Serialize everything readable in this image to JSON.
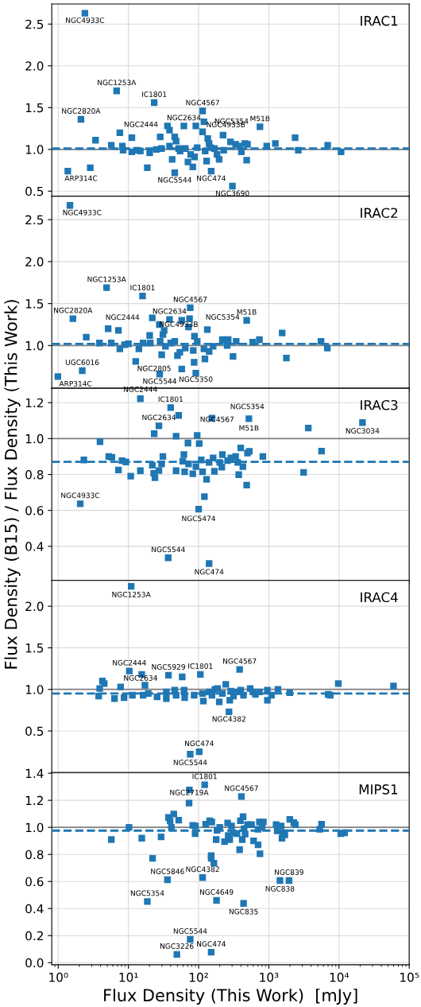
{
  "chart_data": [
    {
      "type": "scatter",
      "title": "IRAC1",
      "color": "#1f77b4",
      "marker": "square",
      "grid": true,
      "legend": false,
      "log": "x",
      "tick_labels": "y",
      "xlim": [
        0.81,
        100000
      ],
      "ylim": [
        0.44,
        2.74
      ],
      "yticks": [
        0.5,
        {
          "value": 1,
          "label": "1.0"
        },
        1.5,
        {
          "value": 2,
          "label": "2.0"
        },
        2.5
      ],
      "x": [
        2.4,
        1.37,
        2.11,
        2.86,
        3.4,
        5.7,
        6.8,
        7.55,
        8.2,
        8.4,
        11.2,
        11.2,
        13.0,
        14.8,
        18.6,
        20.1,
        23.3,
        25,
        28.4,
        29.7,
        36,
        38.5,
        42,
        38.5,
        45.7,
        45.7,
        47.8,
        52,
        54.5,
        61.7,
        64.6,
        70.5,
        77,
        82.6,
        87.3,
        91.3,
        95.5,
        114,
        114,
        119,
        124,
        130,
        135,
        141,
        148,
        151,
        168,
        183,
        196,
        223,
        228,
        284,
        303,
        337,
        382,
        407,
        456,
        484,
        497,
        748,
        935,
        1240,
        2370,
        2630,
        6900,
        10700
      ],
      "values": [
        2.63,
        0.74,
        1.36,
        0.78,
        1.11,
        1.05,
        1.7,
        1.2,
        1.04,
        0.99,
        1.14,
        0.97,
        0.99,
        0.98,
        0.78,
        0.96,
        1.56,
        1.0,
        1.15,
        1.01,
        1.28,
        1.23,
        0.88,
        1.04,
        0.72,
        1.15,
        1.1,
        1.01,
        0.98,
        1.28,
        1.01,
        0.85,
        0.94,
        0.79,
        0.91,
        1.28,
        1.02,
        1.46,
        1.21,
        1.33,
        0.98,
        0.86,
        1.13,
        1.07,
        1.02,
        0.74,
        1.01,
        0.94,
        0.88,
        1.17,
        0.99,
        1.09,
        0.56,
        1.06,
        1.04,
        0.97,
        1.07,
        0.87,
        1.06,
        1.27,
        1.04,
        1.07,
        1.14,
        0.99,
        1.05,
        0.97
      ],
      "ref_lines": [
        {
          "axis": "y",
          "value": 1.0,
          "color": "#808080",
          "line_style": "solid"
        },
        {
          "axis": "y",
          "value": 1.01,
          "color": "#1f77b4",
          "line_style": "dashed"
        }
      ],
      "annotations": [
        {
          "text": "NGC4933C",
          "x": 2.4,
          "y": 2.63
        },
        {
          "text": "NGC1253A",
          "x": 6.8,
          "y": 1.7
        },
        {
          "text": "IC1801",
          "x": 23.3,
          "y": 1.56
        },
        {
          "text": "NGC4567",
          "x": 114,
          "y": 1.46
        },
        {
          "text": "NGC2820A",
          "x": 2.11,
          "y": 1.36
        },
        {
          "text": "NGC2444",
          "x": 36,
          "y": 1.28
        },
        {
          "text": "NGC2634",
          "x": 61.7,
          "y": 1.28
        },
        {
          "text": "NGC5354",
          "x": 119,
          "y": 1.33
        },
        {
          "text": "NGC4933B",
          "x": 114,
          "y": 1.21
        },
        {
          "text": "M51B",
          "x": 748,
          "y": 1.27
        },
        {
          "text": "ARP314C",
          "x": 1.37,
          "y": 0.74
        },
        {
          "text": "NGC5544",
          "x": 45.7,
          "y": 0.72
        },
        {
          "text": "NGC474",
          "x": 151,
          "y": 0.74
        },
        {
          "text": "NGC3690",
          "x": 303,
          "y": 0.56
        }
      ]
    },
    {
      "type": "scatter",
      "title": "IRAC2",
      "color": "#1f77b4",
      "marker": "square",
      "grid": true,
      "legend": false,
      "log": "x",
      "tick_labels": "y",
      "xlim": [
        0.81,
        100000
      ],
      "ylim": [
        0.49,
        2.78
      ],
      "yticks": [
        {
          "value": 1,
          "label": "1.0"
        },
        1.5,
        {
          "value": 2,
          "label": "2.0"
        },
        2.5
      ],
      "x": [
        1.47,
        0.99,
        1.62,
        2.2,
        2.51,
        3.87,
        4.89,
        5.15,
        5.7,
        7.2,
        7.55,
        8.8,
        10,
        12.7,
        14.1,
        15.9,
        16.2,
        20.1,
        20.5,
        21.9,
        27.6,
        28.3,
        27.9,
        29.8,
        31,
        32.3,
        33.7,
        38.5,
        40,
        45.7,
        50,
        54,
        57.5,
        57.5,
        64.6,
        71.9,
        74.3,
        75.9,
        84,
        87.3,
        86.3,
        91.3,
        95.5,
        119,
        123,
        133,
        141,
        161,
        218,
        255,
        264,
        309,
        343,
        590,
        735,
        484,
        1550,
        1780,
        5540,
        6820
      ],
      "values": [
        2.67,
        0.63,
        1.32,
        0.7,
        1.1,
        1.03,
        1.69,
        1.2,
        1.03,
        1.18,
        0.96,
        1.01,
        1.02,
        0.81,
        0.96,
        1.59,
        1.03,
        1.12,
        1.03,
        1.33,
        1.25,
        1.05,
        0.66,
        0.89,
        1.13,
        1.18,
        0.99,
        1.31,
        1.03,
        1.05,
        0.88,
        0.92,
        1.3,
        0.72,
        0.97,
        1.22,
        1.32,
        1.45,
        0.94,
        1.11,
        0.8,
        0.67,
        1.05,
        0.96,
        0.84,
        1.19,
        0.93,
        0.99,
        1.07,
        1.0,
        1.07,
        0.87,
        1.05,
        1.04,
        1.07,
        1.3,
        1.15,
        0.85,
        1.05,
        0.97
      ],
      "ref_lines": [
        {
          "axis": "y",
          "value": 1.0,
          "color": "#808080",
          "line_style": "solid"
        },
        {
          "axis": "y",
          "value": 1.02,
          "color": "#1f77b4",
          "line_style": "dashed"
        }
      ],
      "annotations": [
        {
          "text": "NGC4933C",
          "x": 1.47,
          "y": 2.67
        },
        {
          "text": "NGC1253A",
          "x": 4.89,
          "y": 1.69
        },
        {
          "text": "IC1801",
          "x": 15.9,
          "y": 1.59
        },
        {
          "text": "NGC4567",
          "x": 75.9,
          "y": 1.45
        },
        {
          "text": "NGC2820A",
          "x": 1.62,
          "y": 1.32
        },
        {
          "text": "NGC2444",
          "x": 21.9,
          "y": 1.33
        },
        {
          "text": "NGC2634",
          "x": 38.5,
          "y": 1.31
        },
        {
          "text": "NGC5354",
          "x": 74.3,
          "y": 1.32
        },
        {
          "text": "M51B",
          "x": 484,
          "y": 1.3
        },
        {
          "text": "NGC4933B",
          "x": 71.9,
          "y": 1.22
        },
        {
          "text": "UGC6016",
          "x": 2.2,
          "y": 0.7
        },
        {
          "text": "NGC2805",
          "x": 57.5,
          "y": 0.72
        },
        {
          "text": "NGC5544",
          "x": 27.9,
          "y": 0.66
        },
        {
          "text": "NGC5350",
          "x": 91.3,
          "y": 0.67
        },
        {
          "text": "ARP314C",
          "x": 0.99,
          "y": 0.63
        }
      ]
    },
    {
      "type": "scatter",
      "title": "IRAC3",
      "ylabel": "Flux Density (B15) / Flux Density (This Work)",
      "color": "#1f77b4",
      "marker": "square",
      "grid": true,
      "legend": false,
      "log": "x",
      "tick_labels": "y",
      "xlim": [
        0.81,
        100000
      ],
      "ylim": [
        0.21,
        1.28
      ],
      "yticks": [
        0.4,
        0.6,
        0.8,
        {
          "value": 1,
          "label": "1.0"
        },
        1.2
      ],
      "x": [
        2.06,
        2.32,
        3.94,
        5.25,
        5.82,
        7.22,
        8.09,
        9.2,
        10.8,
        14.8,
        14.8,
        21.9,
        22.9,
        23.3,
        23.9,
        27.2,
        27.2,
        29.7,
        31,
        36.9,
        40,
        47.8,
        47.8,
        52,
        59.4,
        61.7,
        63.3,
        70.5,
        71.9,
        82.6,
        91.6,
        95.5,
        100,
        102,
        109,
        114,
        121,
        130,
        141,
        141,
        155,
        161,
        168,
        200,
        218,
        214,
        259,
        288,
        337,
        361,
        373,
        398,
        427,
        484,
        497,
        520,
        528,
        823,
        3130,
        3650,
        5640,
        21600
      ],
      "values": [
        0.637,
        0.881,
        0.982,
        0.9,
        0.896,
        0.825,
        0.877,
        0.87,
        0.791,
        1.222,
        0.821,
        0.852,
        0.807,
        1.027,
        0.782,
        1.071,
        0.822,
        0.859,
        0.9,
        0.336,
        1.173,
        1.013,
        0.821,
        1.129,
        0.874,
        0.911,
        0.815,
        0.975,
        0.859,
        0.804,
        0.844,
        1.018,
        0.607,
        0.972,
        0.881,
        0.815,
        0.677,
        0.773,
        0.304,
        0.867,
        1.114,
        0.892,
        0.818,
        0.867,
        0.911,
        0.841,
        0.877,
        0.892,
        0.9,
        0.867,
        0.799,
        0.948,
        0.844,
        0.741,
        0.919,
        1.111,
        0.929,
        0.9,
        0.812,
        1.059,
        0.93,
        1.089
      ],
      "ref_lines": [
        {
          "axis": "y",
          "value": 1.0,
          "color": "#808080",
          "line_style": "solid"
        },
        {
          "axis": "y",
          "value": 0.87,
          "color": "#1f77b4",
          "line_style": "dashed"
        }
      ],
      "annotations": [
        {
          "text": "NGC2444",
          "x": 14.8,
          "y": 1.222
        },
        {
          "text": "IC1801",
          "x": 40,
          "y": 1.173
        },
        {
          "text": "NGC5354",
          "x": 155,
          "y": 1.114
        },
        {
          "text": "NGC2634",
          "x": 27.2,
          "y": 1.071
        },
        {
          "text": "NGC4567",
          "x": 95.5,
          "y": 1.018
        },
        {
          "text": "M51B",
          "x": 520,
          "y": 1.111
        },
        {
          "text": "NGC3034",
          "x": 21600,
          "y": 1.089
        },
        {
          "text": "NGC4933C",
          "x": 2.06,
          "y": 0.637
        },
        {
          "text": "NGC5474",
          "x": 100,
          "y": 0.607
        },
        {
          "text": "NGC5544",
          "x": 36.9,
          "y": 0.336
        },
        {
          "text": "NGC474",
          "x": 141,
          "y": 0.304
        }
      ]
    },
    {
      "type": "scatter",
      "title": "IRAC4",
      "color": "#1f77b4",
      "marker": "square",
      "grid": true,
      "legend": false,
      "log": "x",
      "tick_labels": "y",
      "xlim": [
        0.81,
        100000
      ],
      "ylim": [
        0.0,
        2.31
      ],
      "yticks": [
        0.5,
        {
          "value": 1,
          "label": "1.0"
        },
        1.5,
        {
          "value": 2,
          "label": "2.0"
        }
      ],
      "x": [
        10.96,
        3.77,
        3.9,
        4.26,
        4.52,
        6.34,
        7.74,
        8.67,
        10.3,
        11.4,
        15.5,
        16.2,
        17.2,
        19.2,
        25.6,
        34.7,
        34.7,
        37.2,
        45.7,
        47.8,
        58.4,
        62.1,
        63.3,
        86.3,
        106,
        114,
        117,
        141,
        155,
        171,
        186,
        197,
        218,
        244,
        271,
        278,
        288,
        314,
        352,
        384,
        398,
        436,
        542,
        592,
        645,
        735,
        955,
        955,
        1090,
        1350,
        1990,
        7000,
        7510,
        9770,
        59700,
        75.9,
        102
      ],
      "values": [
        2.24,
        0.92,
        1.01,
        1.1,
        1.07,
        0.89,
        1.03,
        0.9,
        1.22,
        0.93,
        1.18,
        0.93,
        1.05,
        0.95,
        0.91,
        0.89,
        0.97,
        1.17,
        0.99,
        0.93,
        1.15,
        0.99,
        0.9,
        0.93,
        1.18,
        0.95,
        0.86,
        0.97,
        0.93,
        1.0,
        1.01,
        0.85,
        0.95,
        1.06,
        0.73,
        0.87,
        0.98,
        0.92,
        0.97,
        1.24,
        0.99,
        0.93,
        1.01,
        0.97,
        0.94,
        0.97,
        0.87,
        0.99,
        0.93,
        1.0,
        0.96,
        0.94,
        0.93,
        1.07,
        1.04,
        0.22,
        0.25
      ],
      "ref_lines": [
        {
          "axis": "y",
          "value": 1.0,
          "color": "#808080",
          "line_style": "solid"
        },
        {
          "axis": "y",
          "value": 0.95,
          "color": "#1f77b4",
          "line_style": "dashed"
        }
      ],
      "annotations": [
        {
          "text": "NGC1253A",
          "x": 10.96,
          "y": 2.24
        },
        {
          "text": "NGC2444",
          "x": 10.3,
          "y": 1.22
        },
        {
          "text": "NGC5929",
          "x": 37.2,
          "y": 1.17
        },
        {
          "text": "IC1801",
          "x": 106,
          "y": 1.18
        },
        {
          "text": "NGC4567",
          "x": 384,
          "y": 1.24
        },
        {
          "text": "NGC2634",
          "x": 17.2,
          "y": 1.05
        },
        {
          "text": "NGC4382",
          "x": 271,
          "y": 0.73
        },
        {
          "text": "NGC474",
          "x": 102,
          "y": 0.25
        },
        {
          "text": "NGC5544",
          "x": 75.9,
          "y": 0.22
        }
      ]
    },
    {
      "type": "scatter",
      "title": "MIPS1",
      "xlabel": "Flux Density (This Work)  [mJy]",
      "color": "#1f77b4",
      "marker": "square",
      "grid": true,
      "legend": false,
      "log": "x",
      "xlim": [
        0.81,
        100000
      ],
      "xticks": [
        {
          "value": 1,
          "label": "10⁰"
        },
        {
          "value": 10,
          "label": "10¹"
        },
        {
          "value": 100,
          "label": "10²"
        },
        {
          "value": 1000,
          "label": "10³"
        },
        {
          "value": 10000,
          "label": "10⁴"
        },
        {
          "value": 100000,
          "label": "10⁵"
        }
      ],
      "ylim": [
        -0.015,
        1.405
      ],
      "yticks": [
        {
          "value": 0,
          "label": "0.0"
        },
        0.2,
        0.4,
        0.6,
        0.8,
        {
          "value": 1,
          "label": "1.0"
        },
        1.2,
        1.4
      ],
      "x": [
        5.71,
        10.2,
        15.5,
        18.6,
        22.1,
        29.2,
        36,
        37.2,
        39.2,
        40.9,
        44.3,
        52.1,
        49,
        73.8,
        73.1,
        75.9,
        82.6,
        89.2,
        90.1,
        114,
        122,
        126,
        144,
        151,
        151,
        151,
        154,
        165,
        178,
        183,
        180,
        200,
        234,
        259,
        264,
        278,
        295,
        309,
        352,
        384,
        394,
        407,
        418,
        430,
        437,
        444,
        460,
        497,
        567,
        607,
        703,
        703,
        735,
        748,
        802,
        837,
        1270,
        1320,
        1440,
        1500,
        1540,
        1600,
        1690,
        1940,
        1990,
        2270,
        2390,
        5310,
        5640,
        10600,
        12000
      ],
      "values": [
        0.91,
        1.0,
        0.92,
        0.452,
        0.771,
        0.93,
        0.613,
        1.073,
        1.049,
        1.0,
        1.099,
        1.053,
        0.061,
        1.277,
        1.18,
        0.172,
        1.015,
        0.954,
        1.01,
        0.629,
        1.315,
        1.023,
        1.049,
        0.791,
        0.771,
        0.077,
        1.039,
        0.736,
        0.91,
        0.978,
        0.46,
        1.0,
        0.894,
        1.033,
        0.94,
        0.91,
        1.01,
        0.96,
        0.954,
        0.835,
        1.049,
        1.228,
        0.91,
        1.079,
        0.438,
        0.99,
        0.95,
        1.02,
        1.02,
        0.9,
        0.871,
        0.986,
        1.04,
        0.805,
        1.0,
        1.04,
        1.02,
        0.974,
        0.607,
        1.01,
        0.92,
        0.96,
        0.944,
        0.607,
        1.059,
        1.035,
        1.02,
        0.986,
        1.023,
        0.954,
        0.96
      ],
      "ref_lines": [
        {
          "axis": "y",
          "value": 1.0,
          "color": "#808080",
          "line_style": "solid"
        },
        {
          "axis": "y",
          "value": 0.976,
          "color": "#1f77b4",
          "line_style": "dashed"
        }
      ],
      "annotations": [
        {
          "text": "IC1801",
          "x": 122,
          "y": 1.315
        },
        {
          "text": "NGC2719A",
          "x": 73.1,
          "y": 1.18
        },
        {
          "text": "NGC4567",
          "x": 407,
          "y": 1.228
        },
        {
          "text": "NGC5846",
          "x": 36,
          "y": 0.613
        },
        {
          "text": "NGC4382",
          "x": 114,
          "y": 0.629
        },
        {
          "text": "NGC839",
          "x": 1940,
          "y": 0.607
        },
        {
          "text": "NGC838",
          "x": 1440,
          "y": 0.607
        },
        {
          "text": "NGC5354",
          "x": 18.6,
          "y": 0.452
        },
        {
          "text": "NGC4649",
          "x": 180,
          "y": 0.46
        },
        {
          "text": "NGC835",
          "x": 437,
          "y": 0.438
        },
        {
          "text": "NGC5544",
          "x": 75.9,
          "y": 0.172
        },
        {
          "text": "NGC3226",
          "x": 49,
          "y": 0.061
        },
        {
          "text": "NGC474",
          "x": 151,
          "y": 0.077
        }
      ]
    }
  ]
}
